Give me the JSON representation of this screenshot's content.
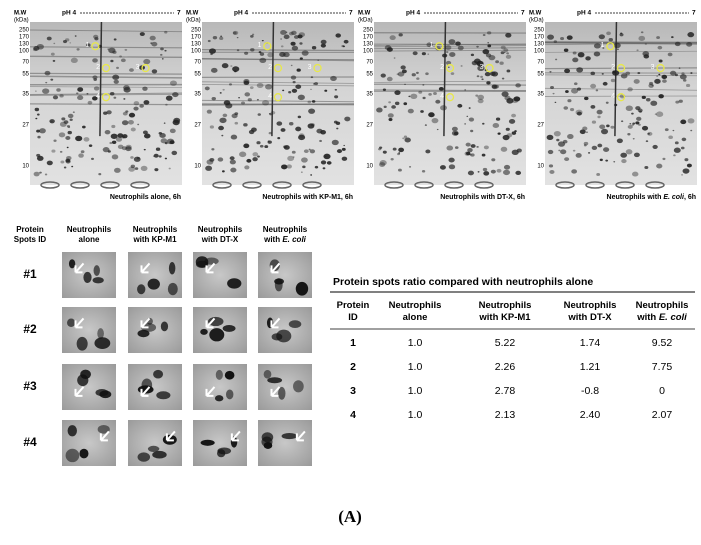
{
  "gels": [
    {
      "caption": [
        "Neutrophils alone, 6h"
      ]
    },
    {
      "caption": [
        "Neutrophils with KP-M1, 6h"
      ]
    },
    {
      "caption": [
        "Neutrophils with  DT-X, 6h"
      ]
    },
    {
      "caption": [
        "Neutrophils with ",
        {
          "text": "E. coli",
          "italic": true
        },
        ", 6h"
      ]
    }
  ],
  "mw_label": "M.W",
  "mw_unit": "(kDa)",
  "ph_start": "pH 4",
  "ph_end": "7",
  "markers": [
    250,
    170,
    130,
    100,
    70,
    55,
    35,
    27,
    10
  ],
  "spot_labels": [
    "1",
    "2",
    "3",
    "4"
  ],
  "grid": {
    "row_header": [
      [
        "Protein"
      ],
      [
        "Spots ID"
      ]
    ],
    "columns": [
      [
        [
          "Neutrophils"
        ],
        [
          "alone"
        ]
      ],
      [
        [
          "Neutrophils"
        ],
        [
          "with KP-M1"
        ]
      ],
      [
        [
          "Neutrophils"
        ],
        [
          "with  DT-X"
        ]
      ],
      [
        [
          "Neutrophils"
        ],
        [
          "with ",
          {
            "text": "E. coli",
            "italic": true
          }
        ]
      ]
    ],
    "rows": [
      "#1",
      "#2",
      "#3",
      "#4"
    ]
  },
  "table": {
    "title": "Protein spots ratio compared with  neutrophils alone",
    "headers": [
      [
        [
          "Protein"
        ],
        [
          "ID"
        ]
      ],
      [
        [
          "Neutrophils"
        ],
        [
          "alone"
        ]
      ],
      [
        [
          "Neutrophils"
        ],
        [
          "with KP-M1"
        ]
      ],
      [
        [
          "Neutrophils"
        ],
        [
          "with  DT-X"
        ]
      ],
      [
        [
          "Neutrophils"
        ],
        [
          "with  ",
          {
            "text": "E. coli",
            "italic": true
          }
        ]
      ]
    ],
    "rows": [
      [
        "1",
        "1.0",
        "5.22",
        "1.74",
        "9.52"
      ],
      [
        "2",
        "1.0",
        "2.26",
        "1.21",
        "7.75"
      ],
      [
        "3",
        "1.0",
        "2.78",
        "-0.8",
        "0"
      ],
      [
        "4",
        "1.0",
        "2.13",
        "2.40",
        "2.07"
      ]
    ]
  },
  "figure_label": "(A)"
}
